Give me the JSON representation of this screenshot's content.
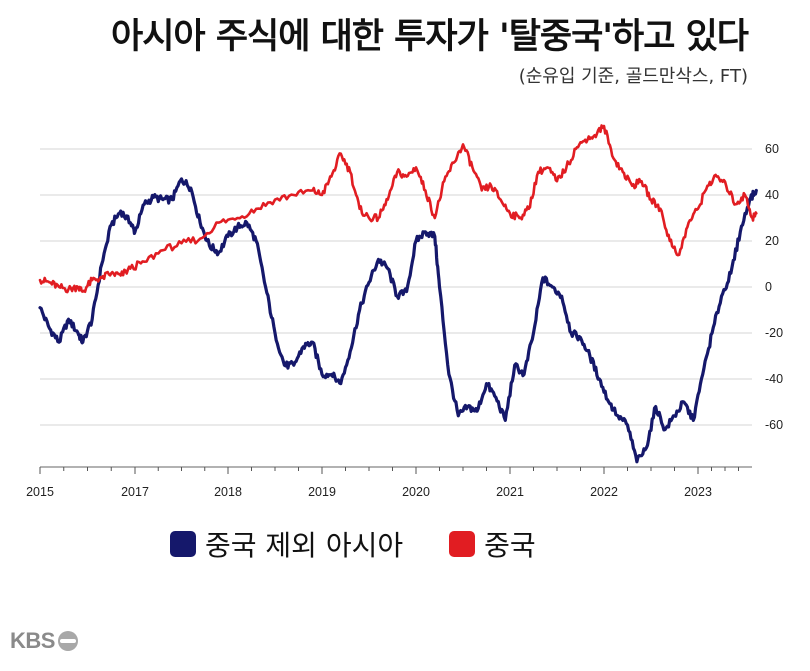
{
  "header": {
    "title": "아시아 주식에 대한 투자가 '탈중국'하고 있다",
    "subtitle": "(순유입 기준, 골드만삭스,  FT)"
  },
  "logo": {
    "text": "KBS"
  },
  "chart_data": {
    "type": "line",
    "title": "아시아 주식에 대한 투자가 '탈중국'하고 있다",
    "subtitle": "(순유입 기준, 골드만삭스,  FT)",
    "xlabel": "",
    "ylabel": "",
    "x_tick_labels": [
      "2015",
      "2017",
      "2018",
      "2019",
      "2020",
      "2021",
      "2022",
      "2023"
    ],
    "y_tick_labels": [
      "60",
      "40",
      "20",
      "0",
      "-20",
      "-40",
      "-60"
    ],
    "ylim": [
      -78,
      72
    ],
    "grid": "horizontal",
    "legend_position": "bottom",
    "series": [
      {
        "name": "중국 제외 아시아",
        "color": "#15186b",
        "points": [
          [
            2016.0,
            -9
          ],
          [
            2016.1,
            -18
          ],
          [
            2016.2,
            -24
          ],
          [
            2016.3,
            -14
          ],
          [
            2016.4,
            -20
          ],
          [
            2016.45,
            -24
          ],
          [
            2016.55,
            -14
          ],
          [
            2016.65,
            10
          ],
          [
            2016.75,
            27
          ],
          [
            2016.85,
            33
          ],
          [
            2016.95,
            28
          ],
          [
            2017.0,
            24
          ],
          [
            2017.1,
            36
          ],
          [
            2017.2,
            39
          ],
          [
            2017.3,
            38
          ],
          [
            2017.4,
            38
          ],
          [
            2017.5,
            47
          ],
          [
            2017.6,
            43
          ],
          [
            2017.7,
            28
          ],
          [
            2017.8,
            18
          ],
          [
            2017.9,
            15
          ],
          [
            2018.0,
            22
          ],
          [
            2018.1,
            26
          ],
          [
            2018.2,
            28
          ],
          [
            2018.3,
            20
          ],
          [
            2018.4,
            0
          ],
          [
            2018.5,
            -20
          ],
          [
            2018.6,
            -34
          ],
          [
            2018.7,
            -34
          ],
          [
            2018.8,
            -26
          ],
          [
            2018.9,
            -24
          ],
          [
            2019.0,
            -38
          ],
          [
            2019.1,
            -38
          ],
          [
            2019.2,
            -42
          ],
          [
            2019.3,
            -28
          ],
          [
            2019.4,
            -10
          ],
          [
            2019.5,
            2
          ],
          [
            2019.6,
            12
          ],
          [
            2019.7,
            8
          ],
          [
            2019.8,
            -4
          ],
          [
            2019.9,
            -2
          ],
          [
            2020.0,
            20
          ],
          [
            2020.1,
            24
          ],
          [
            2020.2,
            22
          ],
          [
            2020.25,
            0
          ],
          [
            2020.35,
            -38
          ],
          [
            2020.45,
            -56
          ],
          [
            2020.55,
            -52
          ],
          [
            2020.65,
            -54
          ],
          [
            2020.75,
            -42
          ],
          [
            2020.85,
            -48
          ],
          [
            2020.95,
            -58
          ],
          [
            2021.05,
            -34
          ],
          [
            2021.15,
            -38
          ],
          [
            2021.25,
            -20
          ],
          [
            2021.35,
            4
          ],
          [
            2021.45,
            0
          ],
          [
            2021.55,
            -4
          ],
          [
            2021.65,
            -20
          ],
          [
            2021.75,
            -22
          ],
          [
            2021.85,
            -30
          ],
          [
            2021.95,
            -40
          ],
          [
            2022.05,
            -50
          ],
          [
            2022.15,
            -56
          ],
          [
            2022.25,
            -60
          ],
          [
            2022.35,
            -76
          ],
          [
            2022.45,
            -70
          ],
          [
            2022.55,
            -52
          ],
          [
            2022.65,
            -62
          ],
          [
            2022.75,
            -56
          ],
          [
            2022.85,
            -50
          ],
          [
            2022.95,
            -58
          ],
          [
            2023.05,
            -38
          ],
          [
            2023.15,
            -20
          ],
          [
            2023.25,
            -4
          ],
          [
            2023.35,
            6
          ],
          [
            2023.45,
            24
          ],
          [
            2023.55,
            38
          ],
          [
            2023.62,
            42
          ]
        ]
      },
      {
        "name": "중국",
        "color": "#e11d22",
        "points": [
          [
            2016.0,
            3
          ],
          [
            2016.1,
            2
          ],
          [
            2016.2,
            0
          ],
          [
            2016.3,
            -1
          ],
          [
            2016.4,
            0
          ],
          [
            2016.45,
            -2
          ],
          [
            2016.55,
            3
          ],
          [
            2016.65,
            4
          ],
          [
            2016.75,
            6
          ],
          [
            2016.85,
            5
          ],
          [
            2016.95,
            8
          ],
          [
            2017.1,
            11
          ],
          [
            2017.3,
            16
          ],
          [
            2017.5,
            19
          ],
          [
            2017.7,
            21
          ],
          [
            2017.9,
            28
          ],
          [
            2018.1,
            30
          ],
          [
            2018.3,
            34
          ],
          [
            2018.5,
            38
          ],
          [
            2018.7,
            40
          ],
          [
            2018.9,
            42
          ],
          [
            2019.0,
            40
          ],
          [
            2019.1,
            48
          ],
          [
            2019.2,
            58
          ],
          [
            2019.3,
            50
          ],
          [
            2019.4,
            34
          ],
          [
            2019.5,
            30
          ],
          [
            2019.6,
            30
          ],
          [
            2019.7,
            38
          ],
          [
            2019.8,
            50
          ],
          [
            2019.9,
            48
          ],
          [
            2020.0,
            52
          ],
          [
            2020.1,
            42
          ],
          [
            2020.2,
            30
          ],
          [
            2020.3,
            46
          ],
          [
            2020.4,
            54
          ],
          [
            2020.5,
            62
          ],
          [
            2020.6,
            52
          ],
          [
            2020.7,
            42
          ],
          [
            2020.8,
            44
          ],
          [
            2020.9,
            38
          ],
          [
            2021.0,
            32
          ],
          [
            2021.1,
            30
          ],
          [
            2021.2,
            34
          ],
          [
            2021.3,
            50
          ],
          [
            2021.4,
            52
          ],
          [
            2021.5,
            46
          ],
          [
            2021.6,
            52
          ],
          [
            2021.7,
            60
          ],
          [
            2021.8,
            64
          ],
          [
            2021.9,
            66
          ],
          [
            2022.0,
            70
          ],
          [
            2022.1,
            56
          ],
          [
            2022.2,
            50
          ],
          [
            2022.3,
            44
          ],
          [
            2022.4,
            46
          ],
          [
            2022.5,
            38
          ],
          [
            2022.6,
            34
          ],
          [
            2022.7,
            20
          ],
          [
            2022.8,
            14
          ],
          [
            2022.9,
            28
          ],
          [
            2023.0,
            34
          ],
          [
            2023.1,
            44
          ],
          [
            2023.2,
            48
          ],
          [
            2023.3,
            44
          ],
          [
            2023.4,
            36
          ],
          [
            2023.5,
            40
          ],
          [
            2023.58,
            30
          ],
          [
            2023.62,
            32
          ]
        ]
      }
    ]
  }
}
